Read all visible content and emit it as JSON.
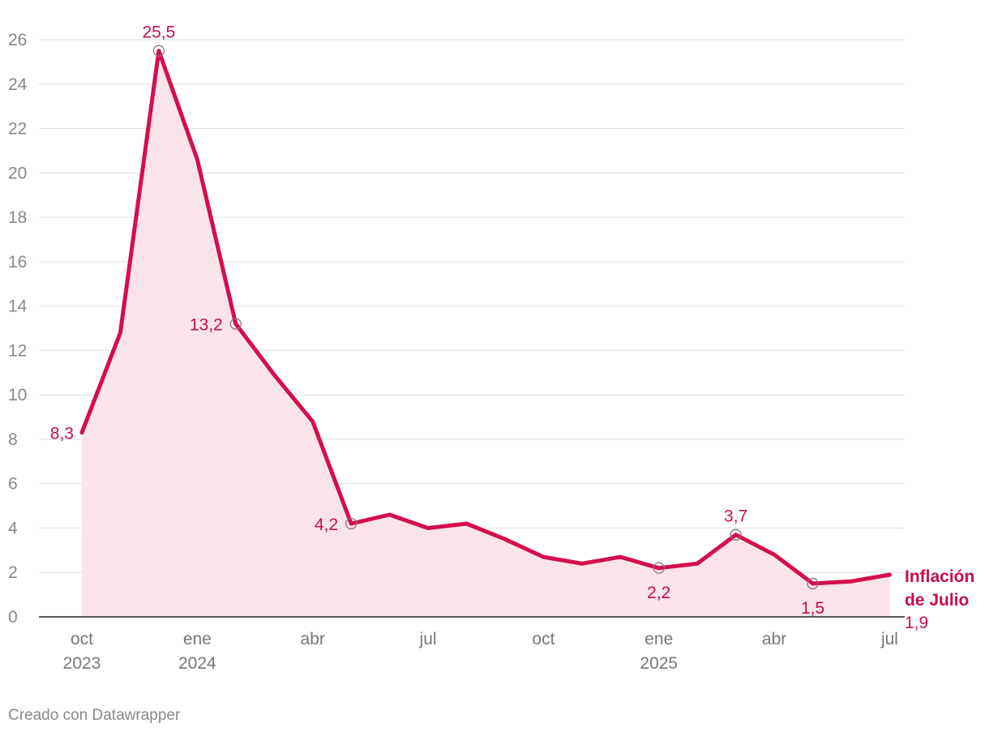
{
  "chart_data": {
    "type": "area",
    "series": [
      {
        "name": "Inflación de Julio",
        "values": [
          8.3,
          12.8,
          25.5,
          20.6,
          13.2,
          10.9,
          8.8,
          4.2,
          4.6,
          4.0,
          4.2,
          3.5,
          2.7,
          2.4,
          2.7,
          2.2,
          2.4,
          3.7,
          2.8,
          1.5,
          1.6,
          1.9
        ]
      }
    ],
    "x": [
      "2023-10",
      "2023-11",
      "2023-12",
      "2024-01",
      "2024-02",
      "2024-03",
      "2024-04",
      "2024-05",
      "2024-06",
      "2024-07",
      "2024-08",
      "2024-09",
      "2024-10",
      "2024-11",
      "2024-12",
      "2025-01",
      "2025-02",
      "2025-03",
      "2025-04",
      "2025-05",
      "2025-06",
      "2025-07"
    ],
    "x_ticks": [
      {
        "label": "oct",
        "sub": "2023"
      },
      {
        "label": "ene",
        "sub": "2024"
      },
      {
        "label": "abr",
        "sub": ""
      },
      {
        "label": "jul",
        "sub": ""
      },
      {
        "label": "oct",
        "sub": ""
      },
      {
        "label": "ene",
        "sub": "2025"
      },
      {
        "label": "abr",
        "sub": ""
      },
      {
        "label": "jul",
        "sub": ""
      }
    ],
    "y_ticks": [
      0,
      2,
      4,
      6,
      8,
      10,
      12,
      14,
      16,
      18,
      20,
      22,
      24,
      26
    ],
    "ylim": [
      0,
      26
    ],
    "annotations": [
      {
        "index": 0,
        "text": "8,3",
        "marker": false
      },
      {
        "index": 2,
        "text": "25,5",
        "marker": true
      },
      {
        "index": 4,
        "text": "13,2",
        "marker": true
      },
      {
        "index": 7,
        "text": "4,2",
        "marker": true
      },
      {
        "index": 15,
        "text": "2,2",
        "marker": true
      },
      {
        "index": 17,
        "text": "3,7",
        "marker": true
      },
      {
        "index": 19,
        "text": "1,5",
        "marker": true
      }
    ],
    "series_label": [
      "Inflación",
      "de Julio"
    ],
    "last_value_label": "1,9",
    "grid": true,
    "color": "#d30f4c",
    "fill_color": "#fbe3ea"
  },
  "footer": {
    "credit": "Creado con Datawrapper"
  }
}
